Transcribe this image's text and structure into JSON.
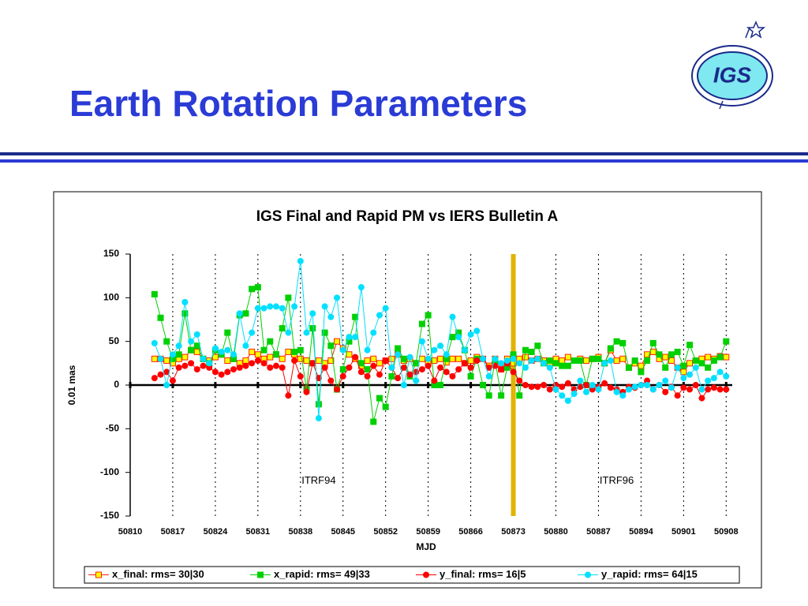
{
  "slide_title": "Earth Rotation Parameters",
  "logo": "IGS",
  "chart_data": {
    "type": "line",
    "title": "IGS Final and Rapid PM vs IERS Bulletin A",
    "xlabel": "MJD",
    "ylabel": "0.01 mas",
    "xlim": [
      50810,
      50909
    ],
    "ylim": [
      -150,
      150
    ],
    "xticks": [
      50810,
      50817,
      50824,
      50831,
      50838,
      50845,
      50852,
      50859,
      50866,
      50873,
      50880,
      50887,
      50894,
      50901,
      50908
    ],
    "yticks": [
      150,
      100,
      50,
      0,
      -50,
      -100,
      -150
    ],
    "grid": true,
    "marker_line": {
      "x": 50873,
      "color": "#e0b400"
    },
    "annotations": [
      {
        "text": "ITRF94",
        "x": 50841,
        "y": -110
      },
      {
        "text": "ITRF96",
        "x": 50890,
        "y": -110
      }
    ],
    "legend": "bottom",
    "x": [
      50814,
      50815,
      50816,
      50817,
      50818,
      50819,
      50820,
      50821,
      50822,
      50823,
      50824,
      50825,
      50826,
      50827,
      50828,
      50829,
      50830,
      50831,
      50832,
      50833,
      50834,
      50835,
      50836,
      50837,
      50838,
      50839,
      50840,
      50841,
      50842,
      50843,
      50844,
      50845,
      50846,
      50847,
      50848,
      50849,
      50850,
      50851,
      50852,
      50853,
      50854,
      50855,
      50856,
      50857,
      50858,
      50859,
      50860,
      50861,
      50862,
      50863,
      50864,
      50865,
      50866,
      50867,
      50868,
      50869,
      50870,
      50871,
      50872,
      50873,
      50874,
      50875,
      50876,
      50877,
      50878,
      50879,
      50880,
      50881,
      50882,
      50883,
      50884,
      50885,
      50886,
      50887,
      50888,
      50889,
      50890,
      50891,
      50892,
      50893,
      50894,
      50895,
      50896,
      50897,
      50898,
      50899,
      50900,
      50901,
      50902,
      50903,
      50904,
      50905,
      50906,
      50907,
      50908
    ],
    "series": [
      {
        "name": "x_final: rms= 30|30",
        "color": "#ff2000",
        "fill": "#ffff00",
        "marker": "square",
        "values": [
          30,
          30,
          28,
          25,
          30,
          32,
          40,
          38,
          30,
          28,
          32,
          35,
          28,
          30,
          25,
          28,
          38,
          35,
          30,
          32,
          35,
          30,
          38,
          35,
          30,
          28,
          25,
          28,
          25,
          28,
          50,
          42,
          35,
          30,
          22,
          28,
          30,
          25,
          28,
          30,
          35,
          28,
          30,
          25,
          30,
          25,
          28,
          30,
          26,
          30,
          30,
          25,
          28,
          32,
          30,
          22,
          30,
          18,
          30,
          25,
          30,
          32,
          28,
          30,
          28,
          25,
          30,
          28,
          32,
          28,
          30,
          28,
          30,
          32,
          25,
          40,
          28,
          30,
          20,
          25,
          22,
          35,
          38,
          30,
          32,
          28,
          20,
          15,
          25,
          28,
          30,
          32,
          30,
          33,
          32
        ]
      },
      {
        "name": "x_rapid: rms= 49|33",
        "color": "#00d000",
        "fill": "#00d000",
        "marker": "square",
        "values": [
          104,
          77,
          50,
          30,
          35,
          82,
          40,
          45,
          30,
          25,
          40,
          35,
          60,
          30,
          80,
          82,
          110,
          112,
          40,
          50,
          35,
          65,
          100,
          38,
          40,
          -5,
          65,
          -22,
          60,
          45,
          -5,
          18,
          50,
          78,
          25,
          18,
          -42,
          -15,
          -25,
          10,
          42,
          30,
          10,
          25,
          70,
          80,
          0,
          0,
          30,
          55,
          60,
          40,
          10,
          30,
          0,
          -12,
          28,
          -12,
          20,
          35,
          -12,
          40,
          38,
          45,
          25,
          28,
          25,
          22,
          22,
          28,
          28,
          0,
          30,
          30,
          25,
          42,
          50,
          48,
          20,
          28,
          15,
          28,
          48,
          35,
          20,
          35,
          38,
          22,
          46,
          28,
          25,
          20,
          28,
          32,
          50
        ]
      },
      {
        "name": "y_final: rms= 16|5",
        "color": "#ff0000",
        "fill": "#ff0000",
        "marker": "circle",
        "values": [
          8,
          12,
          15,
          5,
          20,
          22,
          25,
          18,
          22,
          20,
          15,
          12,
          15,
          18,
          20,
          22,
          25,
          28,
          25,
          20,
          22,
          20,
          -12,
          28,
          10,
          -8,
          25,
          8,
          20,
          5,
          -5,
          10,
          20,
          32,
          15,
          10,
          22,
          12,
          28,
          20,
          8,
          20,
          12,
          15,
          18,
          22,
          5,
          20,
          15,
          10,
          18,
          25,
          20,
          28,
          30,
          20,
          22,
          18,
          25,
          15,
          5,
          0,
          -2,
          -2,
          0,
          -5,
          0,
          -2,
          2,
          -5,
          -2,
          0,
          -5,
          -2,
          2,
          -3,
          -5,
          -8,
          -2,
          -3,
          0,
          5,
          -5,
          0,
          -8,
          -2,
          -12,
          -3,
          -5,
          0,
          -15,
          -5,
          -3,
          -5,
          -5
        ]
      },
      {
        "name": "y_rapid: rms= 64|15",
        "color": "#00e0ff",
        "fill": "#00e0ff",
        "marker": "circle",
        "values": [
          48,
          30,
          0,
          35,
          45,
          95,
          50,
          58,
          30,
          25,
          42,
          38,
          40,
          35,
          82,
          45,
          60,
          88,
          88,
          90,
          90,
          88,
          60,
          90,
          142,
          60,
          82,
          -38,
          90,
          78,
          100,
          40,
          55,
          55,
          112,
          40,
          60,
          80,
          88,
          20,
          35,
          0,
          32,
          5,
          50,
          30,
          40,
          45,
          35,
          78,
          55,
          40,
          58,
          62,
          30,
          10,
          30,
          25,
          28,
          30,
          25,
          20,
          28,
          30,
          25,
          20,
          -5,
          -12,
          -18,
          -10,
          5,
          -8,
          0,
          -5,
          25,
          28,
          -8,
          -12,
          -5,
          -2,
          0,
          0,
          -5,
          0,
          5,
          -3,
          20,
          8,
          12,
          20,
          -5,
          5,
          8,
          15,
          10
        ]
      }
    ]
  }
}
